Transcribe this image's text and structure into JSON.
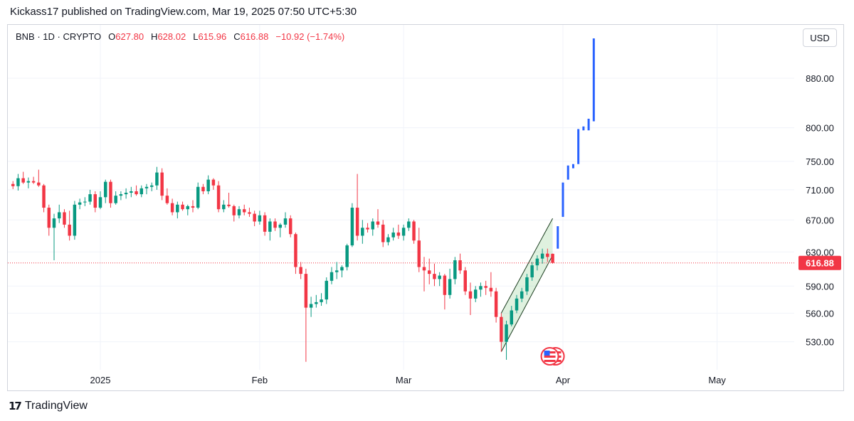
{
  "header": {
    "published": "Kickass17 published on TradingView.com, Mar 19, 2025 07:50 UTC+5:30"
  },
  "legend": {
    "symbol": "BNB · 1D · CRYPTO",
    "o_label": "O",
    "o_value": "627.80",
    "h_label": "H",
    "h_value": "628.02",
    "l_label": "L",
    "l_value": "615.96",
    "c_label": "C",
    "c_value": "616.88",
    "change": "−10.92 (−1.74%)"
  },
  "currency_button": "USD",
  "footer": {
    "logo_mark": "17",
    "brand": "TradingView"
  },
  "colors": {
    "up": "#089981",
    "down": "#f23645",
    "projection": "#2962ff",
    "channel": "#4caf50",
    "price_line": "#f23645"
  },
  "chart_data": {
    "type": "candlestick",
    "symbol": "BNB",
    "interval": "1D",
    "y_ticks": [
      530,
      560,
      590,
      630,
      670,
      710,
      750,
      800,
      880
    ],
    "y_tick_labels": [
      "530.00",
      "560.00",
      "590.00",
      "630.00",
      "670.00",
      "710.00",
      "750.00",
      "800.00",
      "880.00"
    ],
    "ylim": [
      505,
      975
    ],
    "y_scale": "log",
    "x_labels": [
      {
        "date": "2025-01-01",
        "label": "2025"
      },
      {
        "date": "2025-02-01",
        "label": "Feb"
      },
      {
        "date": "2025-03-01",
        "label": "Mar"
      },
      {
        "date": "2025-04-01",
        "label": "Apr"
      },
      {
        "date": "2025-05-01",
        "label": "May"
      }
    ],
    "xlim": [
      "2024-12-14",
      "2025-05-16"
    ],
    "last_price": {
      "value": 616.88,
      "label": "616.88"
    },
    "candles": [
      [
        "2024-12-15",
        718,
        722,
        711,
        715
      ],
      [
        "2024-12-16",
        715,
        732,
        709,
        726
      ],
      [
        "2024-12-17",
        726,
        735,
        718,
        720
      ],
      [
        "2024-12-18",
        720,
        727,
        712,
        722
      ],
      [
        "2024-12-19",
        722,
        728,
        718,
        720
      ],
      [
        "2024-12-20",
        720,
        738,
        714,
        716
      ],
      [
        "2024-12-21",
        716,
        718,
        680,
        686
      ],
      [
        "2024-12-22",
        686,
        690,
        650,
        660
      ],
      [
        "2024-12-23",
        660,
        678,
        620,
        672
      ],
      [
        "2024-12-24",
        672,
        690,
        666,
        680
      ],
      [
        "2024-12-25",
        680,
        684,
        660,
        664
      ],
      [
        "2024-12-26",
        664,
        682,
        644,
        650
      ],
      [
        "2024-12-27",
        650,
        695,
        645,
        690
      ],
      [
        "2024-12-28",
        690,
        698,
        684,
        693
      ],
      [
        "2024-12-29",
        693,
        700,
        688,
        694
      ],
      [
        "2024-12-30",
        694,
        710,
        690,
        704
      ],
      [
        "2024-12-31",
        704,
        708,
        680,
        686
      ],
      [
        "2025-01-01",
        686,
        708,
        684,
        700
      ],
      [
        "2025-01-02",
        700,
        724,
        692,
        721
      ],
      [
        "2025-01-03",
        721,
        724,
        686,
        692
      ],
      [
        "2025-01-04",
        692,
        708,
        690,
        702
      ],
      [
        "2025-01-05",
        702,
        708,
        696,
        704
      ],
      [
        "2025-01-06",
        704,
        712,
        698,
        706
      ],
      [
        "2025-01-07",
        706,
        714,
        700,
        708
      ],
      [
        "2025-01-08",
        708,
        716,
        702,
        704
      ],
      [
        "2025-01-09",
        704,
        716,
        700,
        712
      ],
      [
        "2025-01-10",
        712,
        718,
        704,
        714
      ],
      [
        "2025-01-11",
        714,
        720,
        708,
        716
      ],
      [
        "2025-01-12",
        716,
        742,
        710,
        734
      ],
      [
        "2025-01-13",
        734,
        740,
        696,
        702
      ],
      [
        "2025-01-14",
        702,
        712,
        690,
        692
      ],
      [
        "2025-01-15",
        692,
        698,
        676,
        680
      ],
      [
        "2025-01-16",
        680,
        694,
        672,
        690
      ],
      [
        "2025-01-17",
        690,
        694,
        682,
        684
      ],
      [
        "2025-01-18",
        684,
        690,
        676,
        688
      ],
      [
        "2025-01-19",
        688,
        696,
        680,
        686
      ],
      [
        "2025-01-20",
        686,
        720,
        684,
        714
      ],
      [
        "2025-01-21",
        714,
        718,
        704,
        708
      ],
      [
        "2025-01-22",
        708,
        730,
        704,
        724
      ],
      [
        "2025-01-23",
        724,
        726,
        710,
        716
      ],
      [
        "2025-01-24",
        716,
        722,
        680,
        684
      ],
      [
        "2025-01-25",
        684,
        696,
        680,
        690
      ],
      [
        "2025-01-26",
        690,
        706,
        686,
        688
      ],
      [
        "2025-01-27",
        688,
        690,
        668,
        676
      ],
      [
        "2025-01-28",
        676,
        688,
        672,
        684
      ],
      [
        "2025-01-29",
        684,
        690,
        676,
        680
      ],
      [
        "2025-01-30",
        680,
        686,
        674,
        678
      ],
      [
        "2025-01-31",
        678,
        682,
        662,
        668
      ],
      [
        "2025-02-01",
        668,
        682,
        664,
        676
      ],
      [
        "2025-02-02",
        676,
        680,
        650,
        655
      ],
      [
        "2025-02-03",
        655,
        672,
        644,
        668
      ],
      [
        "2025-02-04",
        668,
        672,
        656,
        660
      ],
      [
        "2025-02-05",
        660,
        666,
        648,
        664
      ],
      [
        "2025-02-06",
        664,
        680,
        660,
        672
      ],
      [
        "2025-02-07",
        672,
        676,
        648,
        652
      ],
      [
        "2025-02-08",
        652,
        654,
        604,
        612
      ],
      [
        "2025-02-09",
        612,
        618,
        598,
        604
      ],
      [
        "2025-02-10",
        604,
        610,
        510,
        566
      ],
      [
        "2025-02-11",
        566,
        578,
        556,
        570
      ],
      [
        "2025-02-12",
        570,
        580,
        566,
        572
      ],
      [
        "2025-02-13",
        572,
        582,
        568,
        575
      ],
      [
        "2025-02-14",
        575,
        600,
        570,
        596
      ],
      [
        "2025-02-15",
        596,
        612,
        592,
        606
      ],
      [
        "2025-02-16",
        606,
        618,
        598,
        608
      ],
      [
        "2025-02-17",
        608,
        614,
        600,
        612
      ],
      [
        "2025-02-18",
        612,
        640,
        608,
        638
      ],
      [
        "2025-02-19",
        638,
        692,
        636,
        686
      ],
      [
        "2025-02-20",
        686,
        732,
        644,
        650
      ],
      [
        "2025-02-21",
        650,
        670,
        640,
        660
      ],
      [
        "2025-02-22",
        660,
        666,
        654,
        658
      ],
      [
        "2025-02-23",
        658,
        672,
        650,
        668
      ],
      [
        "2025-02-24",
        668,
        684,
        660,
        664
      ],
      [
        "2025-02-25",
        664,
        670,
        636,
        642
      ],
      [
        "2025-02-26",
        642,
        652,
        638,
        648
      ],
      [
        "2025-02-27",
        648,
        660,
        644,
        654
      ],
      [
        "2025-02-28",
        654,
        664,
        646,
        650
      ],
      [
        "2025-03-01",
        650,
        664,
        644,
        660
      ],
      [
        "2025-03-02",
        660,
        672,
        656,
        668
      ],
      [
        "2025-03-03",
        668,
        670,
        640,
        644
      ],
      [
        "2025-03-04",
        644,
        660,
        606,
        612
      ],
      [
        "2025-03-05",
        612,
        624,
        584,
        608
      ],
      [
        "2025-03-06",
        608,
        622,
        592,
        604
      ],
      [
        "2025-03-07",
        604,
        616,
        590,
        598
      ],
      [
        "2025-03-08",
        598,
        606,
        590,
        602
      ],
      [
        "2025-03-09",
        602,
        604,
        564,
        580
      ],
      [
        "2025-03-10",
        580,
        610,
        576,
        598
      ],
      [
        "2025-03-11",
        598,
        624,
        592,
        620
      ],
      [
        "2025-03-12",
        620,
        628,
        604,
        608
      ],
      [
        "2025-03-13",
        608,
        612,
        580,
        584
      ],
      [
        "2025-03-14",
        584,
        594,
        558,
        576
      ],
      [
        "2025-03-15",
        576,
        590,
        572,
        586
      ],
      [
        "2025-03-16",
        586,
        594,
        578,
        590
      ],
      [
        "2025-03-17",
        590,
        596,
        580,
        588
      ],
      [
        "2025-03-18",
        588,
        606,
        578,
        584
      ],
      [
        "2025-03-19",
        584,
        588,
        550,
        556
      ],
      [
        "2025-03-20",
        556,
        560,
        520,
        530
      ],
      [
        "2025-03-21",
        530,
        552,
        512,
        548
      ],
      [
        "2025-03-22",
        548,
        568,
        546,
        563
      ],
      [
        "2025-03-23",
        563,
        580,
        560,
        576
      ],
      [
        "2025-03-24",
        576,
        588,
        572,
        584
      ],
      [
        "2025-03-25",
        584,
        604,
        580,
        600
      ],
      [
        "2025-03-26",
        600,
        618,
        596,
        614
      ],
      [
        "2025-03-27",
        614,
        626,
        608,
        622
      ],
      [
        "2025-03-28",
        622,
        634,
        616,
        628
      ],
      [
        "2025-03-29",
        628,
        634,
        618,
        624
      ],
      [
        "2025-03-30",
        627.8,
        628.02,
        615.96,
        616.88
      ]
    ],
    "projection_bars": [
      [
        "2025-03-31",
        634,
        662
      ],
      [
        "2025-04-01",
        674,
        720
      ],
      [
        "2025-04-02",
        724,
        744
      ],
      [
        "2025-04-03",
        740,
        746
      ],
      [
        "2025-04-04",
        746,
        798
      ],
      [
        "2025-04-05",
        796,
        802
      ],
      [
        "2025-04-06",
        796,
        814
      ],
      [
        "2025-04-07",
        810,
        950
      ]
    ],
    "channel": {
      "lower": [
        [
          "2025-03-20",
          520
        ],
        [
          "2025-03-30",
          626
        ]
      ],
      "upper": [
        [
          "2025-03-20",
          560
        ],
        [
          "2025-03-30",
          672
        ]
      ]
    },
    "event_markers": [
      {
        "date": "2025-03-30",
        "icon": "us-flag-icon"
      }
    ]
  }
}
